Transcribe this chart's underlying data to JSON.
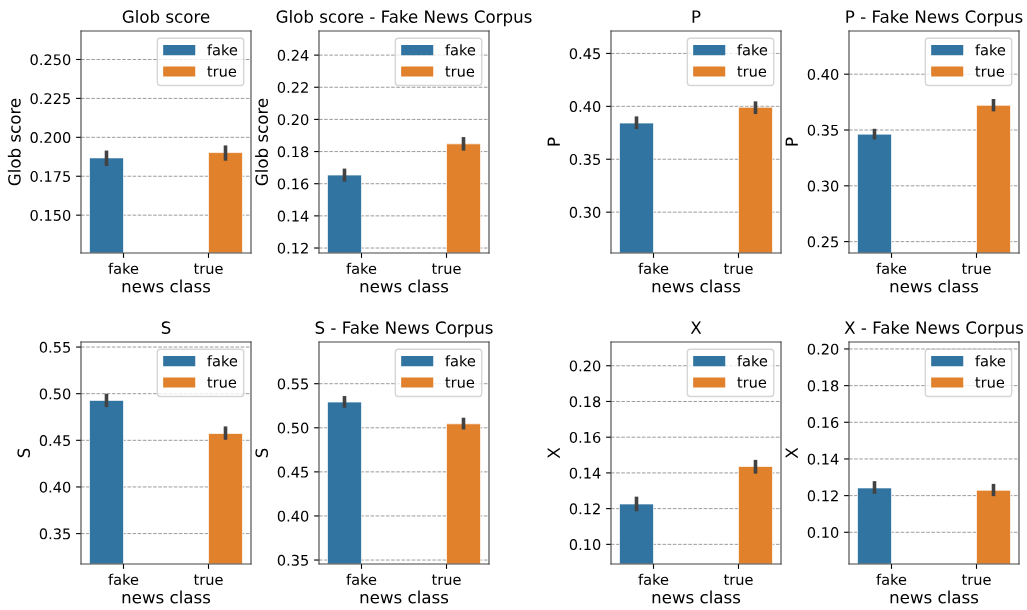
{
  "chart_data": [
    {
      "type": "bar",
      "title": "Glob score",
      "xlabel": "news class",
      "ylabel": "Glob score",
      "categories": [
        "fake",
        "true"
      ],
      "ylim": [
        0.1257,
        0.2683
      ],
      "yticks": [
        {
          "value": 0.15,
          "label": "0.150"
        },
        {
          "value": 0.175,
          "label": "0.175"
        },
        {
          "value": 0.2,
          "label": "0.200"
        },
        {
          "value": 0.225,
          "label": "0.225"
        },
        {
          "value": 0.25,
          "label": "0.250"
        }
      ],
      "grid": "y",
      "legend": "top right",
      "series": [
        {
          "name": "fake",
          "color": "#3274a1",
          "values": [
            0.1868,
            null
          ],
          "errors": [
            [
              0.1816,
              0.1915
            ],
            null
          ]
        },
        {
          "name": "true",
          "color": "#e1812c",
          "values": [
            null,
            0.1902
          ],
          "errors": [
            null,
            [
              0.185,
              0.1948
            ]
          ]
        }
      ]
    },
    {
      "type": "bar",
      "title": "Glob score - Fake News Corpus",
      "xlabel": "news class",
      "ylabel": "Glob score",
      "categories": [
        "fake",
        "true"
      ],
      "ylim": [
        0.1169,
        0.255
      ],
      "yticks": [
        {
          "value": 0.12,
          "label": "0.12"
        },
        {
          "value": 0.14,
          "label": "0.14"
        },
        {
          "value": 0.16,
          "label": "0.16"
        },
        {
          "value": 0.18,
          "label": "0.18"
        },
        {
          "value": 0.2,
          "label": "0.20"
        },
        {
          "value": 0.22,
          "label": "0.22"
        },
        {
          "value": 0.24,
          "label": "0.24"
        }
      ],
      "grid": "y",
      "legend": "top right",
      "series": [
        {
          "name": "fake",
          "color": "#3274a1",
          "values": [
            0.1654,
            null
          ],
          "errors": [
            [
              0.1613,
              0.1694
            ],
            null
          ]
        },
        {
          "name": "true",
          "color": "#e1812c",
          "values": [
            null,
            0.1848
          ],
          "errors": [
            null,
            [
              0.1806,
              0.189
            ]
          ]
        }
      ]
    },
    {
      "type": "bar",
      "title": "P",
      "xlabel": "news class",
      "ylabel": "P",
      "categories": [
        "fake",
        "true"
      ],
      "ylim": [
        0.2614,
        0.4712
      ],
      "yticks": [
        {
          "value": 0.3,
          "label": "0.30"
        },
        {
          "value": 0.35,
          "label": "0.35"
        },
        {
          "value": 0.4,
          "label": "0.40"
        },
        {
          "value": 0.45,
          "label": "0.45"
        }
      ],
      "grid": "y",
      "legend": "top right",
      "series": [
        {
          "name": "fake",
          "color": "#3274a1",
          "values": [
            0.3842,
            null
          ],
          "errors": [
            [
              0.3785,
              0.3905
            ],
            null
          ]
        },
        {
          "name": "true",
          "color": "#e1812c",
          "values": [
            null,
            0.3991
          ],
          "errors": [
            null,
            [
              0.3927,
              0.4047
            ]
          ]
        }
      ]
    },
    {
      "type": "bar",
      "title": "P - Fake News Corpus",
      "xlabel": "news class",
      "ylabel": "P",
      "categories": [
        "fake",
        "true"
      ],
      "ylim": [
        0.2398,
        0.4387
      ],
      "yticks": [
        {
          "value": 0.25,
          "label": "0.25"
        },
        {
          "value": 0.3,
          "label": "0.30"
        },
        {
          "value": 0.35,
          "label": "0.35"
        },
        {
          "value": 0.4,
          "label": "0.40"
        }
      ],
      "grid": "y",
      "legend": "top right",
      "series": [
        {
          "name": "fake",
          "color": "#3274a1",
          "values": [
            0.3463,
            null
          ],
          "errors": [
            [
              0.3415,
              0.3511
            ],
            null
          ]
        },
        {
          "name": "true",
          "color": "#e1812c",
          "values": [
            null,
            0.3721
          ],
          "errors": [
            null,
            [
              0.3667,
              0.3778
            ]
          ]
        }
      ]
    },
    {
      "type": "bar",
      "title": "S",
      "xlabel": "news class",
      "ylabel": "S",
      "categories": [
        "fake",
        "true"
      ],
      "ylim": [
        0.3174,
        0.5554
      ],
      "yticks": [
        {
          "value": 0.35,
          "label": "0.35"
        },
        {
          "value": 0.4,
          "label": "0.40"
        },
        {
          "value": 0.45,
          "label": "0.45"
        },
        {
          "value": 0.5,
          "label": "0.50"
        },
        {
          "value": 0.55,
          "label": "0.55"
        }
      ],
      "grid": "y",
      "legend": "top right",
      "series": [
        {
          "name": "fake",
          "color": "#3274a1",
          "values": [
            0.4928,
            null
          ],
          "errors": [
            [
              0.4856,
              0.4999
            ],
            null
          ]
        },
        {
          "name": "true",
          "color": "#e1812c",
          "values": [
            null,
            0.4573
          ],
          "errors": [
            null,
            [
              0.4506,
              0.4649
            ]
          ]
        }
      ]
    },
    {
      "type": "bar",
      "title": "S - Fake News Corpus",
      "xlabel": "news class",
      "ylabel": "S",
      "categories": [
        "fake",
        "true"
      ],
      "ylim": [
        0.3455,
        0.5973
      ],
      "yticks": [
        {
          "value": 0.35,
          "label": "0.35"
        },
        {
          "value": 0.4,
          "label": "0.40"
        },
        {
          "value": 0.45,
          "label": "0.45"
        },
        {
          "value": 0.5,
          "label": "0.50"
        },
        {
          "value": 0.55,
          "label": "0.55"
        }
      ],
      "grid": "y",
      "legend": "top right",
      "series": [
        {
          "name": "fake",
          "color": "#3274a1",
          "values": [
            0.5292,
            null
          ],
          "errors": [
            [
              0.5227,
              0.536
            ],
            null
          ]
        },
        {
          "name": "true",
          "color": "#e1812c",
          "values": [
            null,
            0.5045
          ],
          "errors": [
            null,
            [
              0.4981,
              0.5114
            ]
          ]
        }
      ]
    },
    {
      "type": "bar",
      "title": "X",
      "xlabel": "news class",
      "ylabel": "X",
      "categories": [
        "fake",
        "true"
      ],
      "ylim": [
        0.089,
        0.2133
      ],
      "yticks": [
        {
          "value": 0.1,
          "label": "0.10"
        },
        {
          "value": 0.12,
          "label": "0.12"
        },
        {
          "value": 0.14,
          "label": "0.14"
        },
        {
          "value": 0.16,
          "label": "0.16"
        },
        {
          "value": 0.18,
          "label": "0.18"
        },
        {
          "value": 0.2,
          "label": "0.20"
        }
      ],
      "grid": "y",
      "legend": "top right",
      "series": [
        {
          "name": "fake",
          "color": "#3274a1",
          "values": [
            0.1226,
            null
          ],
          "errors": [
            [
              0.1185,
              0.1267
            ],
            null
          ]
        },
        {
          "name": "true",
          "color": "#e1812c",
          "values": [
            null,
            0.1436
          ],
          "errors": [
            null,
            [
              0.1396,
              0.1473
            ]
          ]
        }
      ]
    },
    {
      "type": "bar",
      "title": "X - Fake News Corpus",
      "xlabel": "news class",
      "ylabel": "X",
      "categories": [
        "fake",
        "true"
      ],
      "ylim": [
        0.0827,
        0.2038
      ],
      "yticks": [
        {
          "value": 0.1,
          "label": "0.10"
        },
        {
          "value": 0.12,
          "label": "0.12"
        },
        {
          "value": 0.14,
          "label": "0.14"
        },
        {
          "value": 0.16,
          "label": "0.16"
        },
        {
          "value": 0.18,
          "label": "0.18"
        },
        {
          "value": 0.2,
          "label": "0.20"
        }
      ],
      "grid": "y",
      "legend": "top right",
      "series": [
        {
          "name": "fake",
          "color": "#3274a1",
          "values": [
            0.1242,
            null
          ],
          "errors": [
            [
              0.121,
              0.1279
            ],
            null
          ]
        },
        {
          "name": "true",
          "color": "#e1812c",
          "values": [
            null,
            0.1229
          ],
          "errors": [
            null,
            [
              0.1197,
              0.1264
            ]
          ]
        }
      ]
    }
  ]
}
